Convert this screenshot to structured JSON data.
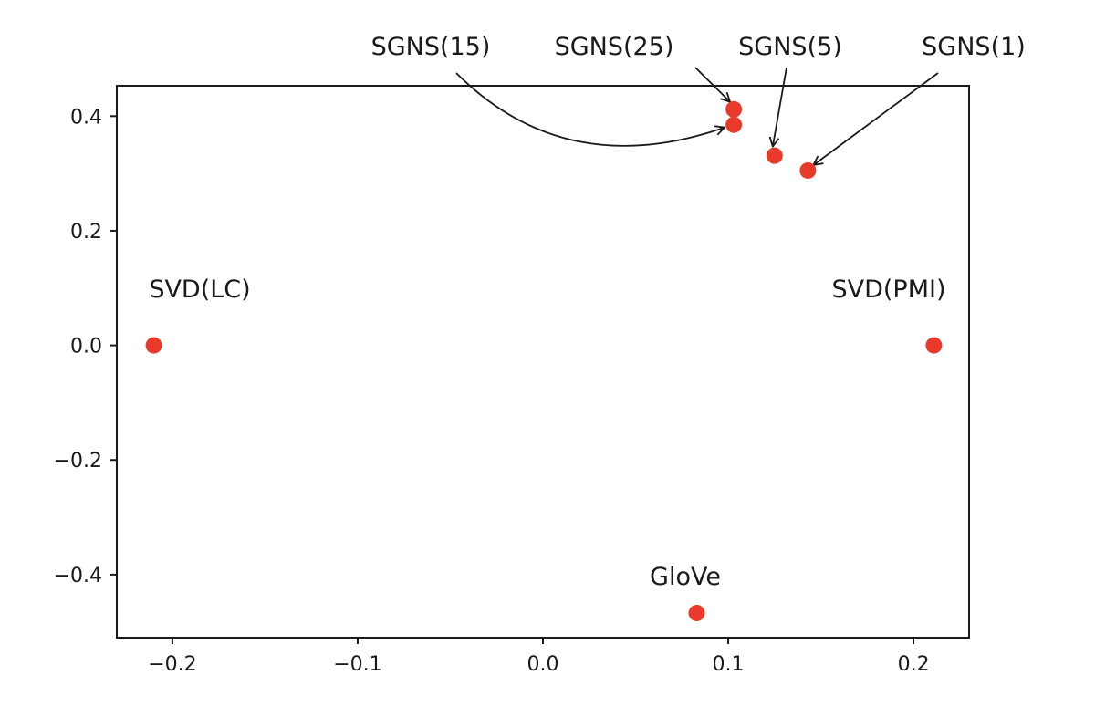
{
  "chart_data": {
    "type": "scatter",
    "title": "",
    "xlabel": "",
    "ylabel": "",
    "xlim": [
      -0.23,
      0.23
    ],
    "ylim": [
      -0.51,
      0.453
    ],
    "xticks": [
      -0.2,
      -0.1,
      0.0,
      0.1,
      0.2
    ],
    "xtick_labels": [
      "−0.2",
      "−0.1",
      "0.0",
      "0.1",
      "0.2"
    ],
    "yticks": [
      -0.4,
      -0.2,
      0.0,
      0.2,
      0.4
    ],
    "ytick_labels": [
      "−0.4",
      "−0.2",
      "0.0",
      "0.2",
      "0.4"
    ],
    "grid": false,
    "marker_color": "#e8392b",
    "points": [
      {
        "name": "SVD(LC)",
        "x": -0.21,
        "y": 0.0
      },
      {
        "name": "SVD(PMI)",
        "x": 0.211,
        "y": 0.0
      },
      {
        "name": "GloVe",
        "x": 0.083,
        "y": -0.467
      },
      {
        "name": "SGNS(25)",
        "x": 0.103,
        "y": 0.412
      },
      {
        "name": "SGNS(15)",
        "x": 0.103,
        "y": 0.385
      },
      {
        "name": "SGNS(5)",
        "x": 0.125,
        "y": 0.331
      },
      {
        "name": "SGNS(1)",
        "x": 0.143,
        "y": 0.305
      }
    ],
    "annotations": [
      "SVD(LC)",
      "SVD(PMI)",
      "GloVe",
      "SGNS(15)",
      "SGNS(25)",
      "SGNS(5)",
      "SGNS(1)"
    ]
  }
}
